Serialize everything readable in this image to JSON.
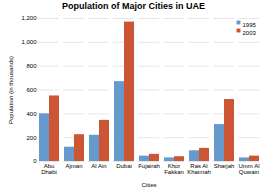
{
  "chart_data": {
    "type": "bar",
    "title": "Population of Major Cities in UAE",
    "xlabel": "Cities",
    "ylabel": "Population (in thousands)",
    "categories": [
      "Abu\nDhabi",
      "Ajman",
      "Al Ain",
      "Dubai",
      "Fujairah",
      "Khor\nFakkan",
      "Ras Al\nKhaimah",
      "Sharjah",
      "Umm Al\nQuwain"
    ],
    "series": [
      {
        "name": "1995",
        "color": "#6699cc",
        "values": [
          400,
          120,
          220,
          670,
          45,
          30,
          90,
          310,
          30
        ]
      },
      {
        "name": "2003",
        "color": "#cc5533",
        "values": [
          550,
          225,
          345,
          1170,
          60,
          40,
          110,
          520,
          45
        ]
      }
    ],
    "ylim": [
      0,
      1200
    ],
    "yticks": [
      0,
      200,
      400,
      600,
      800,
      {
        "value": 1000,
        "label": "1,000"
      },
      {
        "value": 1200,
        "label": "1,200"
      }
    ],
    "grid": true,
    "legend": "upper right"
  }
}
